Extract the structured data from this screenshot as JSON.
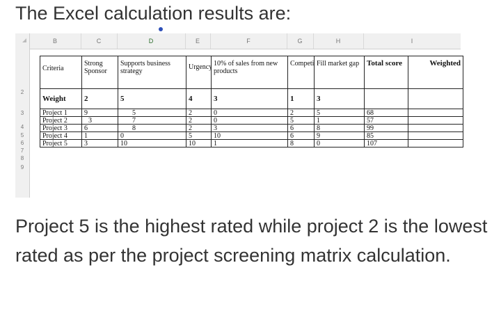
{
  "heading": "The Excel calculation results are:",
  "sheet": {
    "columns": [
      "B",
      "C",
      "D",
      "E",
      "F",
      "G",
      "H",
      "I"
    ],
    "row_numbers": [
      "2",
      "3",
      "4",
      "5",
      "6",
      "7",
      "8",
      "9"
    ],
    "headers": {
      "criteria": "Criteria",
      "strong_sponsor": "Strong Sponsor",
      "supports_strategy": "Supports business strategy",
      "urgency": "Urgency",
      "sales_new_products": "10% of sales from new products",
      "competition": "Competition",
      "fill_market_gap": "Fill market gap",
      "total_score": "Total score",
      "weighted": "Weighted"
    },
    "weight_row": {
      "label": "Weight",
      "values": [
        "2",
        "5",
        "4",
        "3",
        "1",
        "3"
      ]
    },
    "projects": [
      {
        "name": "Project 1",
        "values": [
          "9",
          "5",
          "2",
          "0",
          "2",
          "5"
        ],
        "total": "68"
      },
      {
        "name": "Project 2",
        "values": [
          "3",
          "7",
          "2",
          "0",
          "5",
          "1"
        ],
        "total": "57"
      },
      {
        "name": "Project 3",
        "values": [
          "6",
          "8",
          "2",
          "3",
          "6",
          "8"
        ],
        "total": "99"
      },
      {
        "name": "Project 4",
        "values": [
          "1",
          "0",
          "5",
          "10",
          "6",
          "9"
        ],
        "total": "85"
      },
      {
        "name": "Project 5",
        "values": [
          "3",
          "10",
          "10",
          "1",
          "8",
          "0"
        ],
        "total": "107"
      }
    ]
  },
  "conclusion": "Project 5 is the highest rated while project 2 is the lowest rated as per the project screening matrix calculation."
}
